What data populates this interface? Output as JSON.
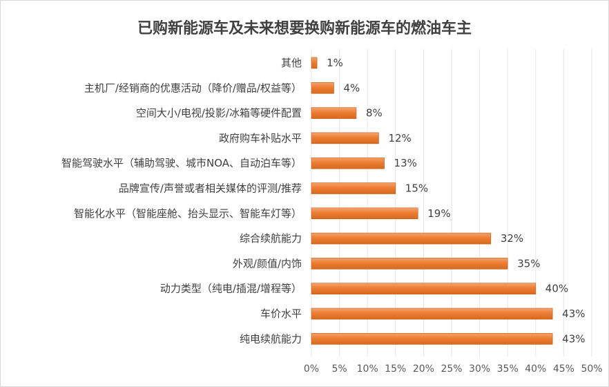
{
  "chart_data": {
    "type": "bar",
    "orientation": "horizontal",
    "title": "已购新能源车及未来想要换购新能源车的燃油车主",
    "categories": [
      "其他",
      "主机厂/经销商的优惠活动（降价/赠品/权益等）",
      "空间大小/电视/投影/冰箱等硬件配置",
      "政府购车补贴水平",
      "智能驾驶水平（辅助驾驶、城市NOA、自动泊车等）",
      "品牌宣传/声誉或者相关媒体的评测/推荐",
      "智能化水平（智能座舱、抬头显示、智能车灯等）",
      "综合续航能力",
      "外观/颜值/内饰",
      "动力类型（纯电/插混/增程等）",
      "车价水平",
      "纯电续航能力"
    ],
    "values": [
      1,
      4,
      8,
      12,
      13,
      15,
      19,
      32,
      35,
      40,
      43,
      43
    ],
    "value_labels": [
      "1%",
      "4%",
      "8%",
      "12%",
      "13%",
      "15%",
      "19%",
      "32%",
      "35%",
      "40%",
      "43%",
      "43%"
    ],
    "xlim": [
      0,
      50
    ],
    "x_ticks": [
      "0%",
      "5%",
      "10%",
      "15%",
      "20%",
      "25%",
      "30%",
      "35%",
      "40%",
      "45%",
      "50%"
    ],
    "grid": "vertical",
    "legend": "none",
    "bar_color": "#ed7d31"
  }
}
